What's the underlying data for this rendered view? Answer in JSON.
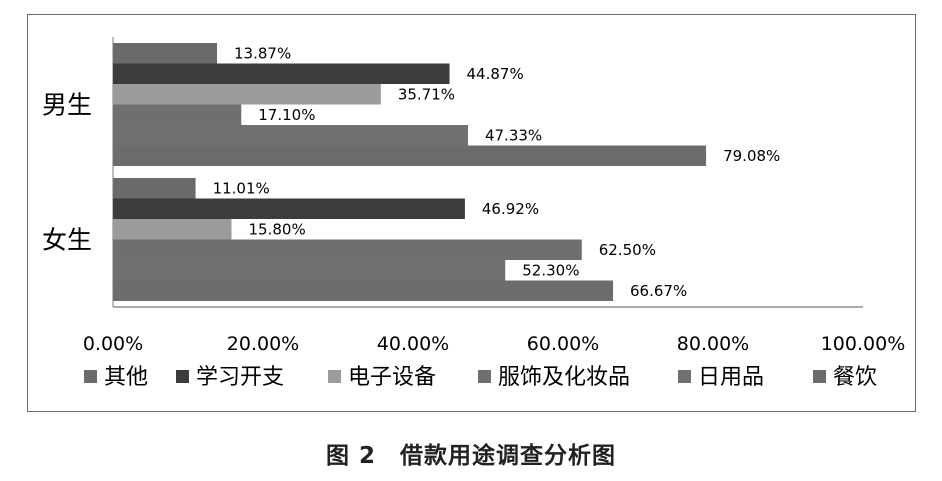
{
  "caption": "图 2　借款用途调查分析图",
  "chart_data": {
    "type": "bar",
    "orientation": "horizontal",
    "categories": [
      "男生",
      "女生"
    ],
    "series": [
      {
        "name": "其他",
        "values": [
          13.87,
          11.01
        ],
        "labels": [
          "13.87%",
          "11.01%"
        ],
        "color": "#6a6a6a"
      },
      {
        "name": "学习开支",
        "values": [
          44.87,
          46.92
        ],
        "labels": [
          "44.87%",
          "46.92%"
        ],
        "color": "#3c3c3c"
      },
      {
        "name": "电子设备",
        "values": [
          35.71,
          15.8
        ],
        "labels": [
          "35.71%",
          "15.80%"
        ],
        "color": "#9b9b9b"
      },
      {
        "name": "服饰及化妆品",
        "values": [
          17.1,
          62.5
        ],
        "labels": [
          "17.10%",
          "62.50%"
        ],
        "color": "#6f6f6f"
      },
      {
        "name": "日用品",
        "values": [
          47.33,
          52.3
        ],
        "labels": [
          "47.33%",
          "52.30%"
        ],
        "color": "#707070"
      },
      {
        "name": "餐饮",
        "values": [
          79.08,
          66.67
        ],
        "labels": [
          "79.08%",
          "66.67%"
        ],
        "color": "#6c6c6c"
      }
    ],
    "xlim": [
      0,
      100
    ],
    "xticks": [
      "0.00%",
      "20.00%",
      "40.00%",
      "60.00%",
      "80.00%",
      "100.00%"
    ],
    "grid": false,
    "legend_position": "bottom"
  }
}
